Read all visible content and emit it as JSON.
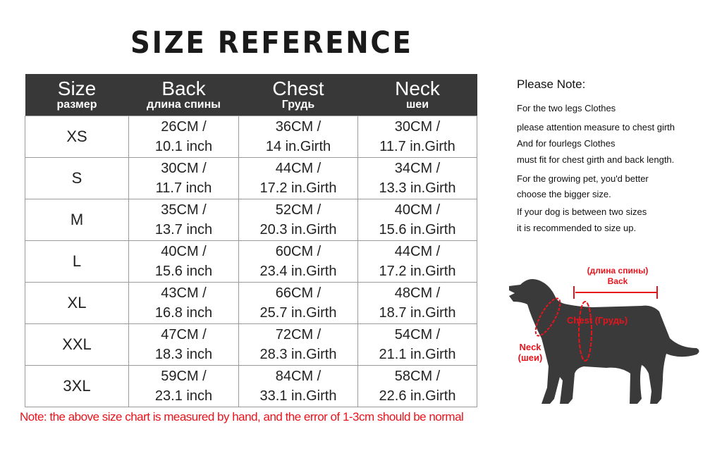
{
  "title": "SIZE REFERENCE",
  "table": {
    "headers": [
      {
        "en": "Size",
        "ru": "размер"
      },
      {
        "en": "Back",
        "ru": "длина спины"
      },
      {
        "en": "Chest",
        "ru": "Грудь"
      },
      {
        "en": "Neck",
        "ru": "шеи"
      }
    ],
    "rows": [
      {
        "size": "XS",
        "back": [
          "26CM /",
          "10.1 inch"
        ],
        "chest": [
          "36CM /",
          "14 in.Girth"
        ],
        "neck": [
          "30CM /",
          "11.7 in.Girth"
        ]
      },
      {
        "size": "S",
        "back": [
          "30CM /",
          "11.7 inch"
        ],
        "chest": [
          "44CM /",
          "17.2 in.Girth"
        ],
        "neck": [
          "34CM /",
          "13.3 in.Girth"
        ]
      },
      {
        "size": "M",
        "back": [
          "35CM /",
          "13.7 inch"
        ],
        "chest": [
          "52CM /",
          "20.3 in.Girth"
        ],
        "neck": [
          "40CM /",
          "15.6 in.Girth"
        ]
      },
      {
        "size": "L",
        "back": [
          "40CM /",
          "15.6 inch"
        ],
        "chest": [
          "60CM /",
          "23.4 in.Girth"
        ],
        "neck": [
          "44CM /",
          "17.2 in.Girth"
        ]
      },
      {
        "size": "XL",
        "back": [
          "43CM /",
          "16.8 inch"
        ],
        "chest": [
          "66CM /",
          "25.7 in.Girth"
        ],
        "neck": [
          "48CM /",
          "18.7 in.Girth"
        ]
      },
      {
        "size": "XXL",
        "back": [
          "47CM /",
          "18.3 inch"
        ],
        "chest": [
          "72CM /",
          "28.3 in.Girth"
        ],
        "neck": [
          "54CM /",
          "21.1 in.Girth"
        ]
      },
      {
        "size": "3XL",
        "back": [
          "59CM /",
          "23.1 inch"
        ],
        "chest": [
          "84CM /",
          "33.1 in.Girth"
        ],
        "neck": [
          "58CM /",
          "22.6 in.Girth"
        ]
      }
    ]
  },
  "footnote": "Note: the above size chart is measured by hand, and the error of 1-3cm should be normal",
  "note": {
    "heading": "Please Note:",
    "lines": [
      "For the two legs Clothes",
      "please attention measure to chest girth",
      "And for fourlegs Clothes",
      "must fit for chest girth and back length.",
      "For the growing pet, you'd better",
      "choose the bigger size.",
      "If your dog is between two sizes",
      "it is recommended to size up."
    ]
  },
  "diagram": {
    "back_ru": "(длина спины)",
    "back_en": "Back",
    "chest": "Chest (Грудь)",
    "neck_en": "Neck",
    "neck_ru": "(шеи)"
  },
  "colors": {
    "header_bg": "#383838",
    "accent_red": "#e8141c",
    "dog": "#3a3a3a"
  }
}
